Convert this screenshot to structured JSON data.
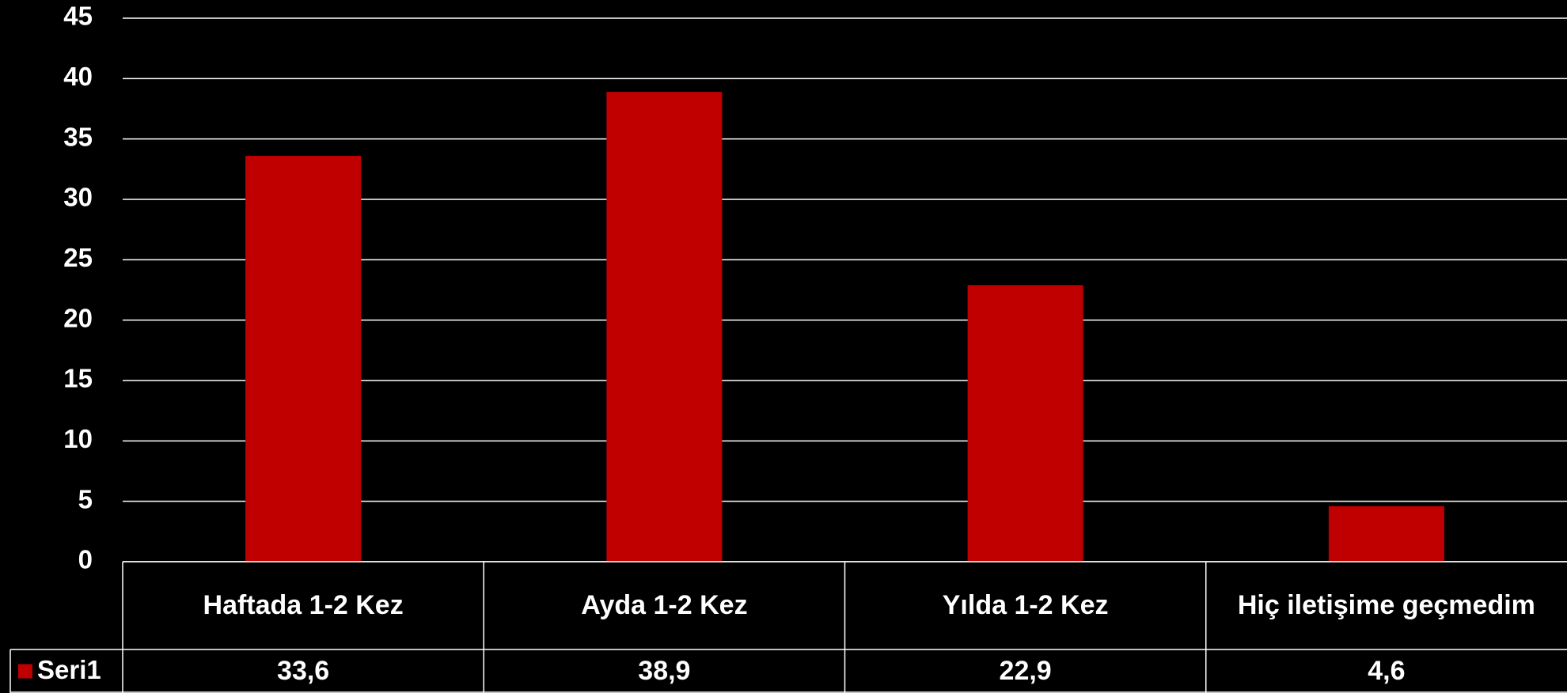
{
  "chart_data": {
    "type": "bar",
    "categories": [
      "Haftada 1-2 Kez",
      "Ayda 1-2 Kez",
      "Yılda 1-2 Kez",
      "Hiç iletişime geçmedim"
    ],
    "series": [
      {
        "name": "Seri1",
        "color": "#c00000",
        "values": [
          33.6,
          38.9,
          22.9,
          4.6
        ],
        "value_labels": [
          "33,6",
          "38,9",
          "22,9",
          "4,6"
        ]
      }
    ],
    "ylim": [
      0,
      45
    ],
    "yticks": [
      0,
      5,
      10,
      15,
      20,
      25,
      30,
      35,
      40,
      45
    ],
    "grid": true,
    "data_table": true
  }
}
